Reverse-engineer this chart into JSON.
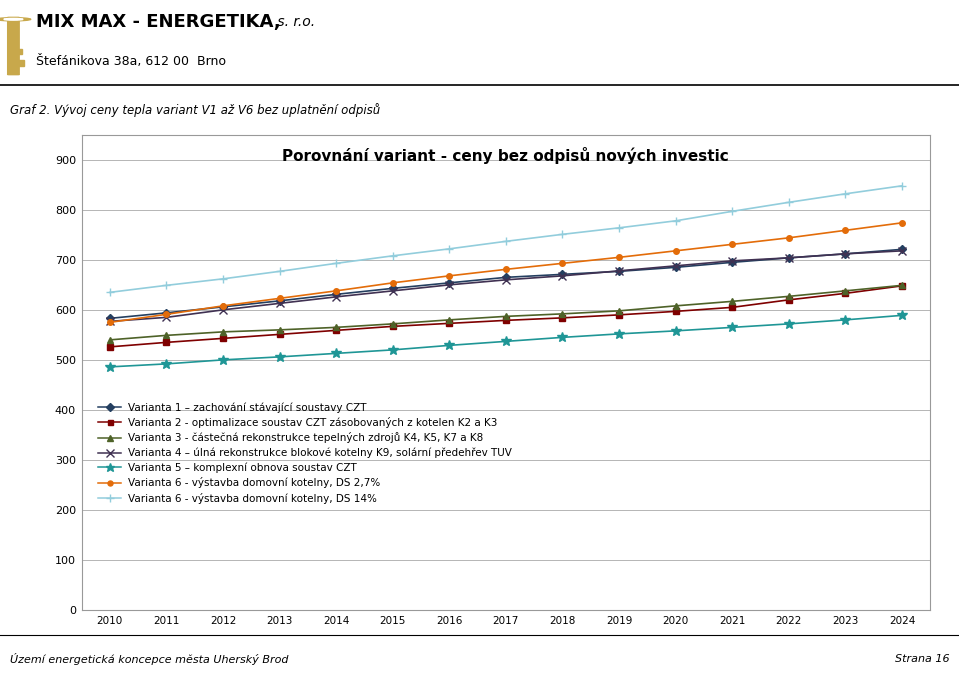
{
  "title": "Porovnání variant - ceny bez odpisů nových investic",
  "header_line1_bold": "MIX MAX - ENERGETIKA,",
  "header_line1_normal": " s. r.o.",
  "header_line2": "Štefánikova 38a, 612 00  Brno",
  "graph_label": "Graf 2. Vývoj ceny tepla variant V1 až V6 bez uplatnění odpisů",
  "footer_left": "Území energetická koncepce města Uherský Brod",
  "footer_right": "Strana 16",
  "years": [
    2010,
    2011,
    2012,
    2013,
    2014,
    2015,
    2016,
    2017,
    2018,
    2019,
    2020,
    2021,
    2022,
    2023,
    2024
  ],
  "series": [
    {
      "label": "Varianta 1 – zachování stávající soustavy CZT",
      "color": "#243F60",
      "marker": "D",
      "markersize": 4,
      "values": [
        583,
        594,
        606,
        618,
        631,
        643,
        654,
        665,
        671,
        677,
        685,
        695,
        704,
        712,
        721
      ]
    },
    {
      "label": "Varianta 2 - optimalizace soustav CZT zásobovaných z kotelen K2 a K3",
      "color": "#7F0000",
      "marker": "s",
      "markersize": 4,
      "values": [
        526,
        535,
        543,
        551,
        559,
        567,
        573,
        579,
        584,
        590,
        597,
        605,
        620,
        633,
        648
      ]
    },
    {
      "label": "Varianta 3 - částečná rekonstrukce tepelných zdrojů K4, K5, K7 a K8",
      "color": "#4E6228",
      "marker": "^",
      "markersize": 5,
      "values": [
        540,
        549,
        556,
        560,
        565,
        572,
        580,
        587,
        592,
        598,
        608,
        617,
        627,
        638,
        649
      ]
    },
    {
      "label": "Varianta 4 – úlná rekonstrukce blokové kotelny K9, solární předehřev TUV",
      "color": "#403152",
      "marker": "x",
      "markersize": 6,
      "linewidth": 1.2,
      "values": [
        577,
        585,
        600,
        613,
        626,
        638,
        650,
        660,
        668,
        678,
        688,
        698,
        704,
        712,
        718
      ]
    },
    {
      "label": "Varianta 5 – komplexní obnova soustav CZT",
      "color": "#1F9696",
      "marker": "*",
      "markersize": 7,
      "values": [
        486,
        492,
        500,
        506,
        513,
        520,
        529,
        537,
        545,
        552,
        558,
        565,
        572,
        580,
        589
      ]
    },
    {
      "label": "Varianta 6 - výstavba domovní kotelny, DS 2,7%",
      "color": "#E36C09",
      "marker": "o",
      "markersize": 4,
      "values": [
        575,
        591,
        608,
        623,
        638,
        654,
        668,
        681,
        693,
        705,
        718,
        731,
        744,
        759,
        774
      ]
    },
    {
      "label": "Varianta 6 - výstavba domovní kotelny, DS 14%",
      "color": "#92CDDC",
      "marker": "+",
      "markersize": 6,
      "values": [
        635,
        649,
        662,
        677,
        693,
        708,
        722,
        737,
        751,
        764,
        778,
        797,
        815,
        832,
        848
      ]
    }
  ],
  "ylim": [
    0,
    950
  ],
  "yticks": [
    0,
    100,
    200,
    300,
    400,
    500,
    600,
    700,
    800,
    900
  ],
  "xlim": [
    2009.5,
    2024.5
  ],
  "bg_color": "#FFFFFF",
  "plot_bg_color": "#FFFFFF",
  "grid_color": "#AAAAAA",
  "border_color": "#999999"
}
